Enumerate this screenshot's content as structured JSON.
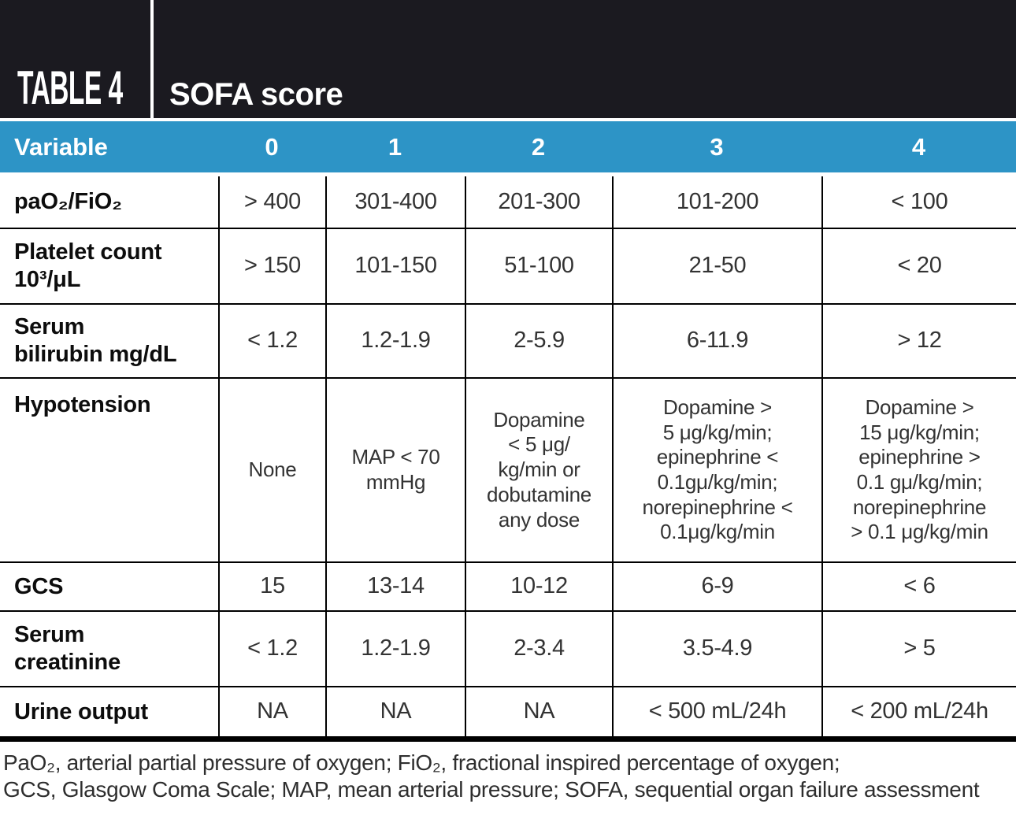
{
  "masthead": {
    "table_label": "TABLE 4",
    "title": "SOFA score"
  },
  "table": {
    "columns": [
      "Variable",
      "0",
      "1",
      "2",
      "3",
      "4"
    ],
    "rows": [
      {
        "label": "paO₂/FiO₂",
        "cells": [
          "> 400",
          "301-400",
          "201-300",
          "101-200",
          "< 100"
        ]
      },
      {
        "label": "Platelet count\n10³/μL",
        "cells": [
          "> 150",
          "101-150",
          "51-100",
          "21-50",
          "< 20"
        ]
      },
      {
        "label": "Serum\nbilirubin mg/dL",
        "cells": [
          "< 1.2",
          "1.2-1.9",
          "2-5.9",
          "6-11.9",
          "> 12"
        ]
      },
      {
        "label": "Hypotension",
        "cells": [
          "None",
          "MAP < 70\nmmHg",
          "Dopamine\n< 5 μg/\nkg/min or\ndobutamine\nany dose",
          "Dopamine >\n5 μg/kg/min;\nepinephrine <\n0.1gμ/kg/min;\nnorepinephrine <\n0.1μg/kg/min",
          "Dopamine >\n15 μg/kg/min;\nepinephrine >\n0.1 gμ/kg/min;\nnorepinephrine\n> 0.1 μg/kg/min"
        ]
      },
      {
        "label": "GCS",
        "cells": [
          "15",
          "13-14",
          "10-12",
          "6-9",
          "< 6"
        ]
      },
      {
        "label": "Serum\ncreatinine",
        "cells": [
          "< 1.2",
          "1.2-1.9",
          "2-3.4",
          "3.5-4.9",
          "> 5"
        ]
      },
      {
        "label": "Urine output",
        "cells": [
          "NA",
          "NA",
          "NA",
          "< 500 mL/24h",
          "< 200 mL/24h"
        ]
      }
    ]
  },
  "footnote": {
    "line1": "PaO₂, arterial partial pressure of oxygen; FiO₂, fractional inspired percentage of oxygen;",
    "line2": "GCS, Glasgow Coma Scale; MAP, mean arterial pressure; SOFA, sequential organ failure assessment"
  },
  "colors": {
    "accent_blue": "#2d94c6",
    "header_black": "#1b1a20",
    "border_black": "#000000"
  }
}
